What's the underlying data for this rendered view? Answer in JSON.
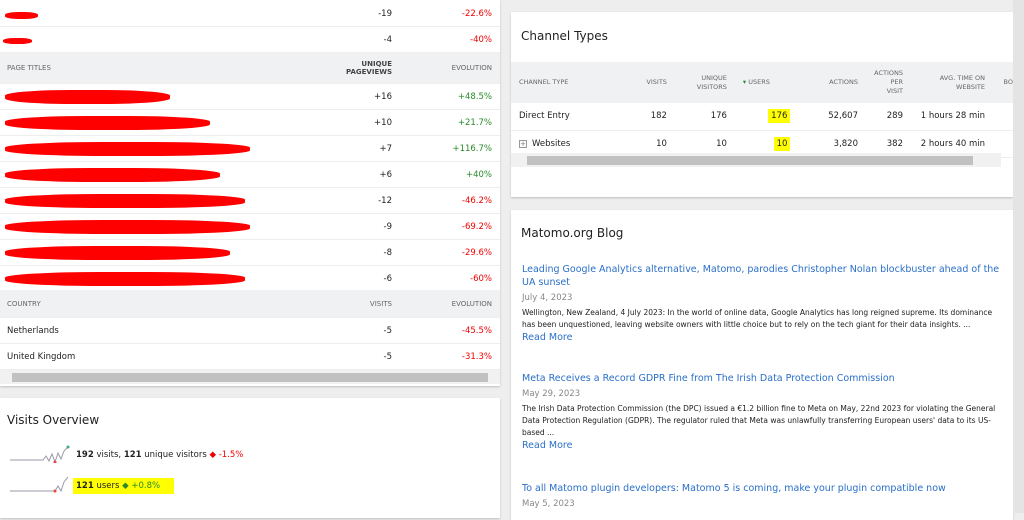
{
  "top_rows": [
    {
      "value": "-19",
      "evolution": "-22.6%"
    },
    {
      "value": "-4",
      "evolution": "-40%"
    }
  ],
  "page_titles": {
    "header": {
      "label": "Page Titles",
      "value": "Unique Pageviews",
      "evolution": "Evolution"
    },
    "rows": [
      {
        "value": "+16",
        "evolution": "+48.5%"
      },
      {
        "value": "+10",
        "evolution": "+21.7%"
      },
      {
        "value": "+7",
        "evolution": "+116.7%"
      },
      {
        "value": "+6",
        "evolution": "+40%"
      },
      {
        "value": "-12",
        "evolution": "-46.2%"
      },
      {
        "value": "-9",
        "evolution": "-69.2%"
      },
      {
        "value": "-8",
        "evolution": "-29.6%"
      },
      {
        "value": "-6",
        "evolution": "-60%"
      }
    ]
  },
  "country": {
    "header": {
      "label": "Country",
      "value": "Visits",
      "evolution": "Evolution"
    },
    "rows": [
      {
        "label": "Netherlands",
        "value": "-5",
        "evolution": "-45.5%"
      },
      {
        "label": "United Kingdom",
        "value": "-5",
        "evolution": "-31.3%"
      }
    ]
  },
  "visits_overview": {
    "title": "Visits Overview",
    "line1": {
      "visits": "192",
      "visits_label": "visits,",
      "unique": "121",
      "unique_label": "unique visitors",
      "evolution": "-1.5%"
    },
    "line2": {
      "users": "121",
      "users_label": "users",
      "evolution": "+0.8%"
    }
  },
  "channel_types": {
    "title": "Channel Types",
    "columns": [
      "Channel Type",
      "Visits",
      "Unique Visitors",
      "Users",
      "Actions",
      "Actions per Visit",
      "Avg. Time on Website",
      "Bo"
    ],
    "rows": [
      [
        "Direct Entry",
        "182",
        "176",
        "176",
        "52,607",
        "289",
        "1 hours 28 min"
      ],
      [
        "Websites",
        "10",
        "10",
        "10",
        "3,820",
        "382",
        "2 hours 40 min"
      ]
    ]
  },
  "blog": {
    "title": "Matomo.org Blog",
    "read_more": "Read More",
    "posts": [
      {
        "title": "Leading Google Analytics alternative, Matomo, parodies Christopher Nolan blockbuster ahead of the UA sunset",
        "date": "July 4, 2023",
        "excerpt": "Wellington, New Zealand, 4 July 2023: In the world of online data, Google Analytics has long reigned supreme. Its dominance has been unquestioned, leaving website owners with little choice but to rely on the tech giant for their data insights. ..."
      },
      {
        "title": "Meta Receives a Record GDPR Fine from The Irish Data Protection Commission",
        "date": "May 29, 2023",
        "excerpt": "The Irish Data Protection Commission (the DPC) issued a €1.2 billion fine to Meta on May, 22nd 2023 for violating the General Data Protection Regulation (GDPR).  The regulator ruled that Meta was unlawfully transferring European users' data to its US-based ..."
      },
      {
        "title": "To all Matomo plugin developers: Matomo 5 is coming, make your plugin compatible now",
        "date": "May 5, 2023"
      }
    ]
  },
  "colors": {
    "negative": "#ee0000",
    "positive": "#2a8a2a",
    "link": "#2a6fc9",
    "highlight": "#ffff00",
    "redaction": "#ff0000"
  }
}
